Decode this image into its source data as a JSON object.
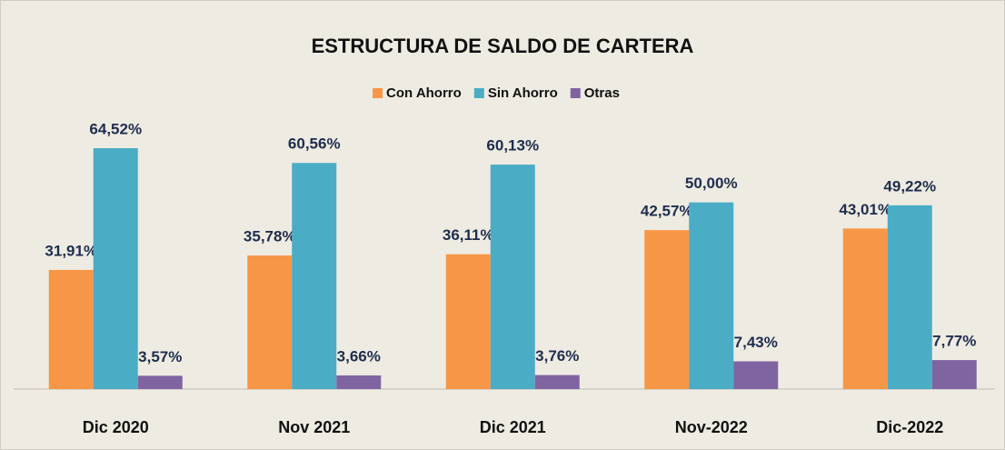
{
  "chart_data": {
    "type": "bar",
    "title": "ESTRUCTURA DE SALDO DE CARTERA",
    "categories": [
      "Dic 2020",
      "Nov 2021",
      "Dic 2021",
      "Nov-2022",
      "Dic-2022"
    ],
    "series": [
      {
        "name": "Con Ahorro",
        "color": "#f79646",
        "values": [
          31.91,
          35.78,
          36.11,
          42.57,
          43.01
        ],
        "value_labels": [
          "31,91%",
          "35,78%",
          "36,11%",
          "42,57%",
          "43,01%"
        ]
      },
      {
        "name": "Sin Ahorro",
        "color": "#4bacc6",
        "values": [
          64.52,
          60.56,
          60.13,
          50.0,
          49.22
        ],
        "value_labels": [
          "64,52%",
          "60,56%",
          "60,13%",
          "50,00%",
          "49,22%"
        ]
      },
      {
        "name": "Otras",
        "color": "#8064a2",
        "values": [
          3.57,
          3.66,
          3.76,
          7.43,
          7.77
        ],
        "value_labels": [
          "3,57%",
          "3,66%",
          "3,76%",
          "7,43%",
          "7,77%"
        ]
      }
    ],
    "legend": "top"
  }
}
